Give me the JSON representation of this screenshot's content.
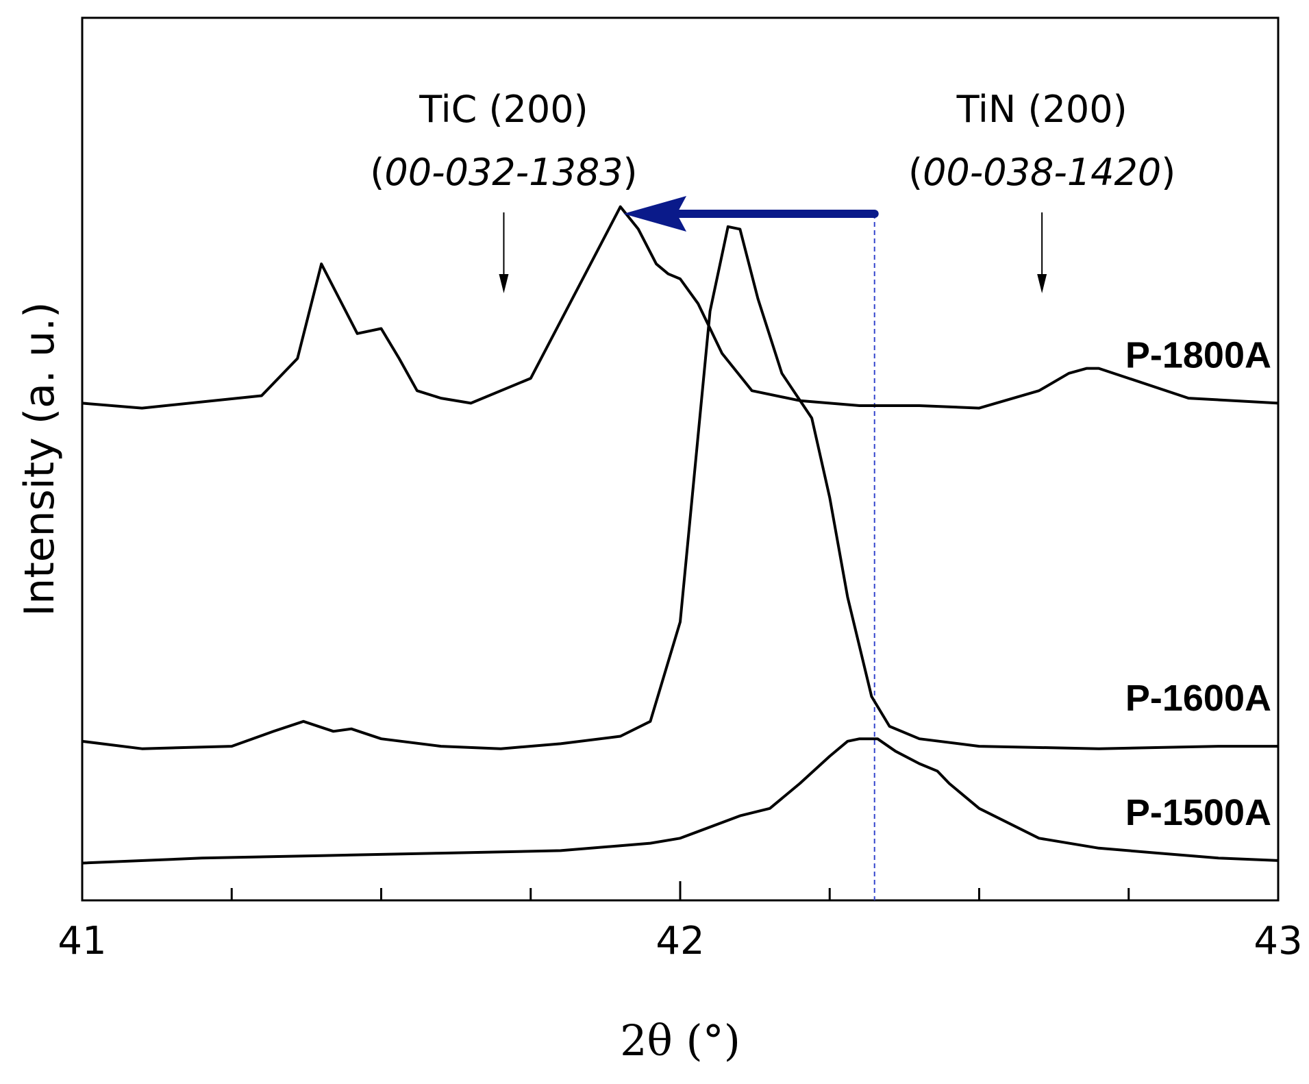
{
  "colors": {
    "line": "#000000",
    "shift_arrow": "#0a1a8a",
    "reference_line": "#3344cc"
  },
  "chart_data": {
    "type": "line",
    "title": "",
    "xlabel": "2θ (°)",
    "ylabel": "Intensity (a. u.)",
    "xlim": [
      41,
      43
    ],
    "xticks": [
      "41",
      "42",
      "43"
    ],
    "y_ticks_shown": false,
    "grid": false,
    "series": [
      {
        "name": "P-1800A",
        "offset": 1.85,
        "x": [
          41.0,
          41.1,
          41.3,
          41.36,
          41.4,
          41.43,
          41.46,
          41.5,
          41.53,
          41.56,
          41.6,
          41.65,
          41.75,
          41.85,
          41.9,
          41.93,
          41.96,
          41.98,
          42.0,
          42.03,
          42.07,
          42.12,
          42.2,
          42.3,
          42.4,
          42.5,
          42.6,
          42.65,
          42.68,
          42.7,
          42.75,
          42.85,
          43.0
        ],
        "y": [
          0.0,
          -0.02,
          0.03,
          0.18,
          0.56,
          0.42,
          0.28,
          0.3,
          0.18,
          0.05,
          0.02,
          0.0,
          0.1,
          0.56,
          0.79,
          0.7,
          0.56,
          0.52,
          0.5,
          0.4,
          0.2,
          0.05,
          0.01,
          -0.01,
          -0.01,
          -0.02,
          0.05,
          0.12,
          0.14,
          0.14,
          0.1,
          0.02,
          0.0
        ]
      },
      {
        "name": "P-1600A",
        "offset": 0.47,
        "x": [
          41.0,
          41.1,
          41.25,
          41.32,
          41.37,
          41.42,
          41.45,
          41.5,
          41.6,
          41.7,
          41.8,
          41.9,
          41.95,
          42.0,
          42.05,
          42.08,
          42.1,
          42.13,
          42.17,
          42.22,
          42.25,
          42.28,
          42.32,
          42.35,
          42.4,
          42.5,
          42.7,
          42.9,
          43.0
        ],
        "y": [
          0.02,
          -0.01,
          0.0,
          0.06,
          0.1,
          0.06,
          0.07,
          0.03,
          0.0,
          -0.01,
          0.01,
          0.04,
          0.1,
          0.5,
          1.75,
          2.09,
          2.08,
          1.8,
          1.5,
          1.32,
          1.0,
          0.6,
          0.2,
          0.08,
          0.03,
          0.0,
          -0.01,
          0.0,
          0.0
        ]
      },
      {
        "name": "P-1500A",
        "offset": 0.0,
        "x": [
          41.0,
          41.2,
          41.4,
          41.6,
          41.8,
          41.9,
          41.95,
          42.0,
          42.1,
          42.15,
          42.2,
          42.25,
          42.28,
          42.3,
          42.33,
          42.36,
          42.4,
          42.43,
          42.45,
          42.5,
          42.6,
          42.7,
          42.8,
          42.9,
          43.0
        ],
        "y": [
          0.0,
          0.02,
          0.03,
          0.04,
          0.05,
          0.07,
          0.08,
          0.1,
          0.19,
          0.22,
          0.32,
          0.43,
          0.49,
          0.5,
          0.5,
          0.45,
          0.4,
          0.37,
          0.32,
          0.22,
          0.1,
          0.06,
          0.04,
          0.02,
          0.01
        ]
      }
    ],
    "ylim": [
      -0.15,
      3.4
    ],
    "annotations": [
      {
        "text": "TiC (200)",
        "ref": "00-032-1383",
        "x": 41.705
      },
      {
        "text": "TiN (200)",
        "ref": "00-038-1420",
        "x": 42.605
      }
    ],
    "reference_line_x": 42.325,
    "shift_arrow": {
      "from_x": 42.325,
      "to_x": 41.905
    }
  }
}
